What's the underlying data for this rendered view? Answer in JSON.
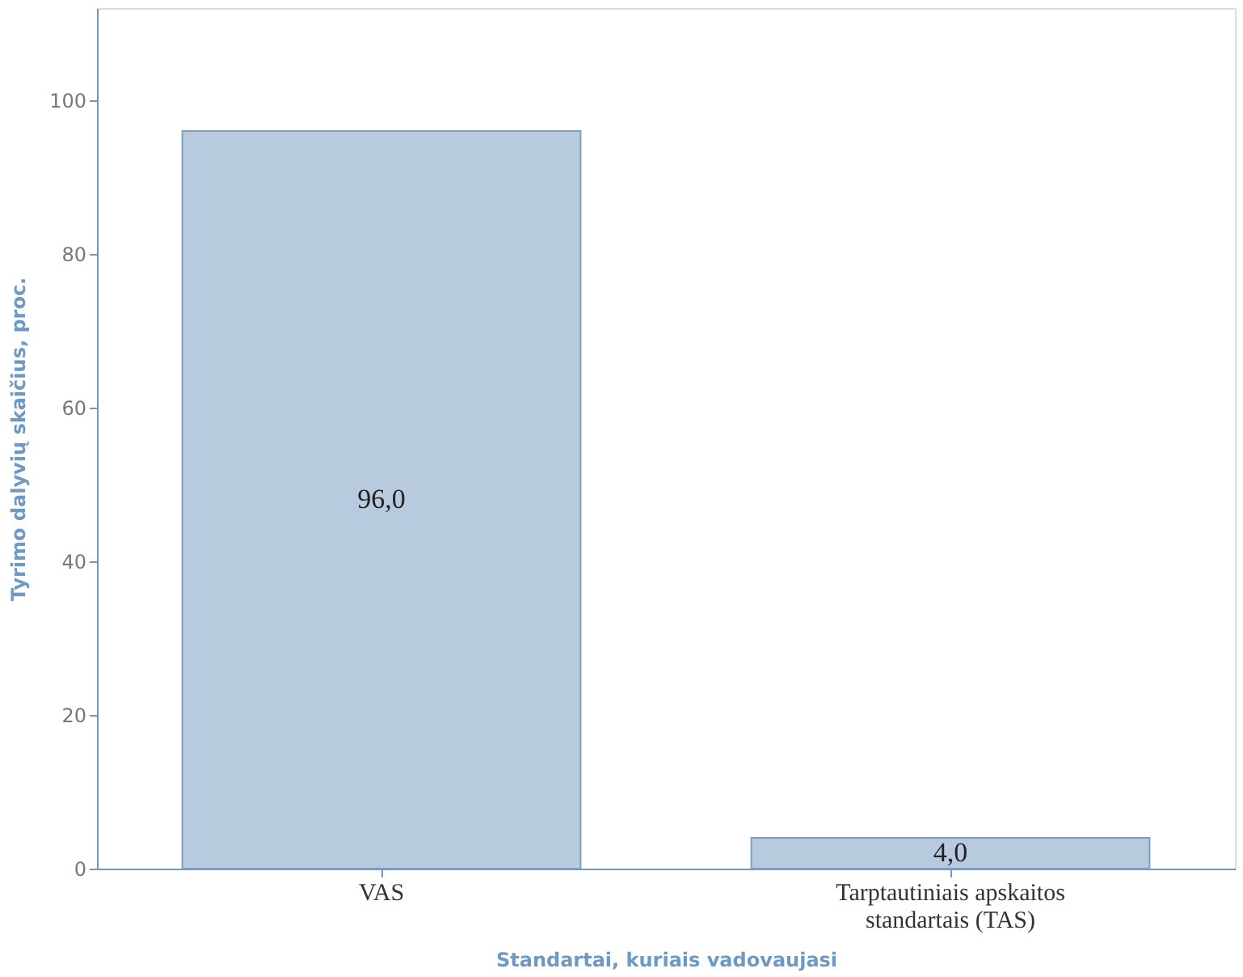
{
  "chart_data": {
    "type": "bar",
    "xlabel": "Standartai, kuriais vadovaujasi",
    "ylabel": "Tyrimo dalyvių skaičius, proc.",
    "categories": [
      "VAS",
      "Tarptautiniais apskaitos standartais (TAS)"
    ],
    "values": [
      96.0,
      4.0
    ],
    "color": "#b8cade",
    "value_labels": [
      "96,0",
      "4,0"
    ],
    "ylim": [
      0,
      112
    ],
    "yticks": [
      0,
      20,
      40,
      60,
      80,
      100
    ],
    "grid": false
  }
}
